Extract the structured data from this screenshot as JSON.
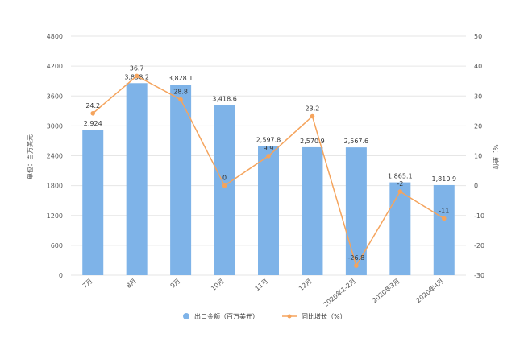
{
  "chart_data": {
    "type": "bar+line",
    "categories": [
      "7月",
      "8月",
      "9月",
      "10月",
      "11月",
      "12月",
      "2020年1-2月",
      "2020年3月",
      "2020年4月"
    ],
    "series": [
      {
        "name": "出口金额（百万美元）",
        "type": "bar",
        "axis": "left",
        "values": [
          2924,
          3858.2,
          3828.1,
          3418.6,
          2597.8,
          2570.9,
          2567.6,
          1865.1,
          1810.9
        ],
        "labels": [
          "2,924",
          "3,858.2",
          "3,828.1",
          "3,418.6",
          "2,597.8",
          "2,570.9",
          "2,567.6",
          "1,865.1",
          "1,810.9"
        ],
        "color": "#7eb3e8"
      },
      {
        "name": "同比增长（%）",
        "type": "line",
        "axis": "right",
        "values": [
          24.2,
          36.7,
          28.8,
          0,
          9.9,
          23.2,
          -26.8,
          -2,
          -11
        ],
        "labels": [
          "24.2",
          "36.7",
          "28.8",
          "0",
          "9.9",
          "23.2",
          "-26.8",
          "-2",
          "-11"
        ],
        "color": "#f5a45d"
      }
    ],
    "ylabel": "单位：百万美元",
    "y2label": "%：单位",
    "ylim": [
      0,
      4800
    ],
    "yticks": [
      0,
      600,
      1200,
      1800,
      2400,
      3000,
      3600,
      4200,
      4800
    ],
    "y2lim": [
      -30,
      50
    ],
    "y2ticks": [
      -30,
      -20,
      -10,
      0,
      10,
      20,
      30,
      40,
      50
    ],
    "grid": true,
    "legend": "bottom-center"
  }
}
